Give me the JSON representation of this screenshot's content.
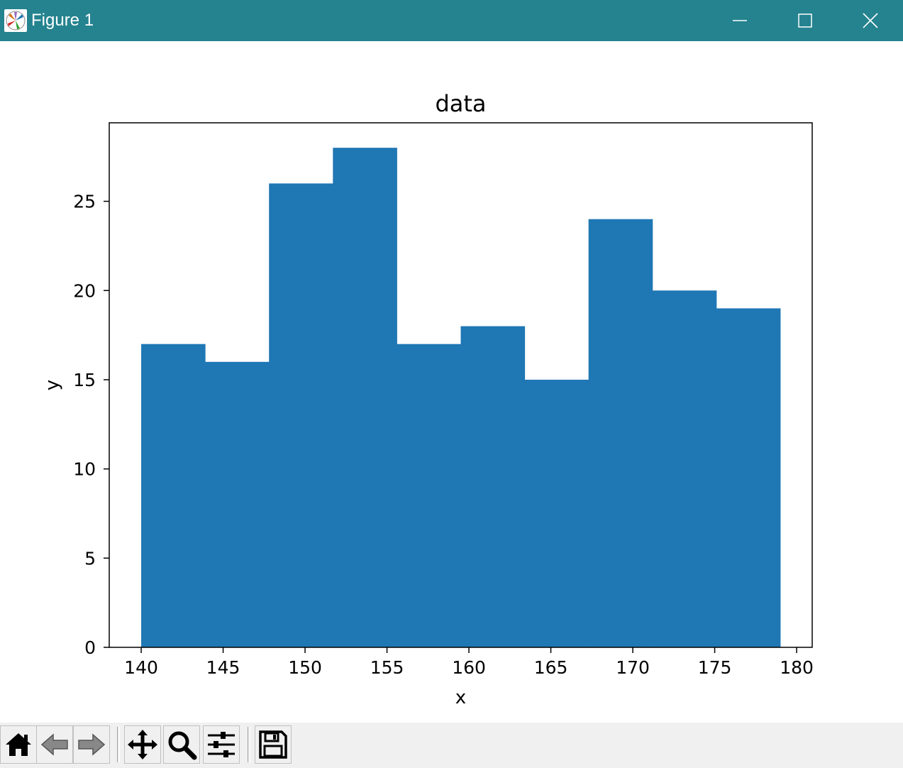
{
  "window": {
    "title": "Figure 1",
    "titlebar_color": "#24838f",
    "icons": [
      "matplotlib-icon",
      "minimize-icon",
      "maximize-icon",
      "close-icon"
    ]
  },
  "toolbar": {
    "buttons": [
      "home-icon",
      "back-icon",
      "forward-icon",
      "pan-icon",
      "zoom-icon",
      "configure-subplots-icon",
      "save-icon"
    ]
  },
  "chart_data": {
    "type": "bar",
    "title": "data",
    "xlabel": "x",
    "ylabel": "y",
    "bin_edges": [
      140,
      143.9,
      147.8,
      151.7,
      155.6,
      159.5,
      163.4,
      167.3,
      171.2,
      175.1,
      179
    ],
    "values": [
      17,
      16,
      26,
      28,
      17,
      18,
      15,
      24,
      20,
      19
    ],
    "xlim": [
      138.05,
      180.95
    ],
    "ylim": [
      0,
      29.4
    ],
    "xticks": [
      140,
      145,
      150,
      155,
      160,
      165,
      170,
      175,
      180
    ],
    "yticks": [
      0,
      5,
      10,
      15,
      20,
      25
    ],
    "bar_color": "#1f77b4",
    "grid": false
  }
}
